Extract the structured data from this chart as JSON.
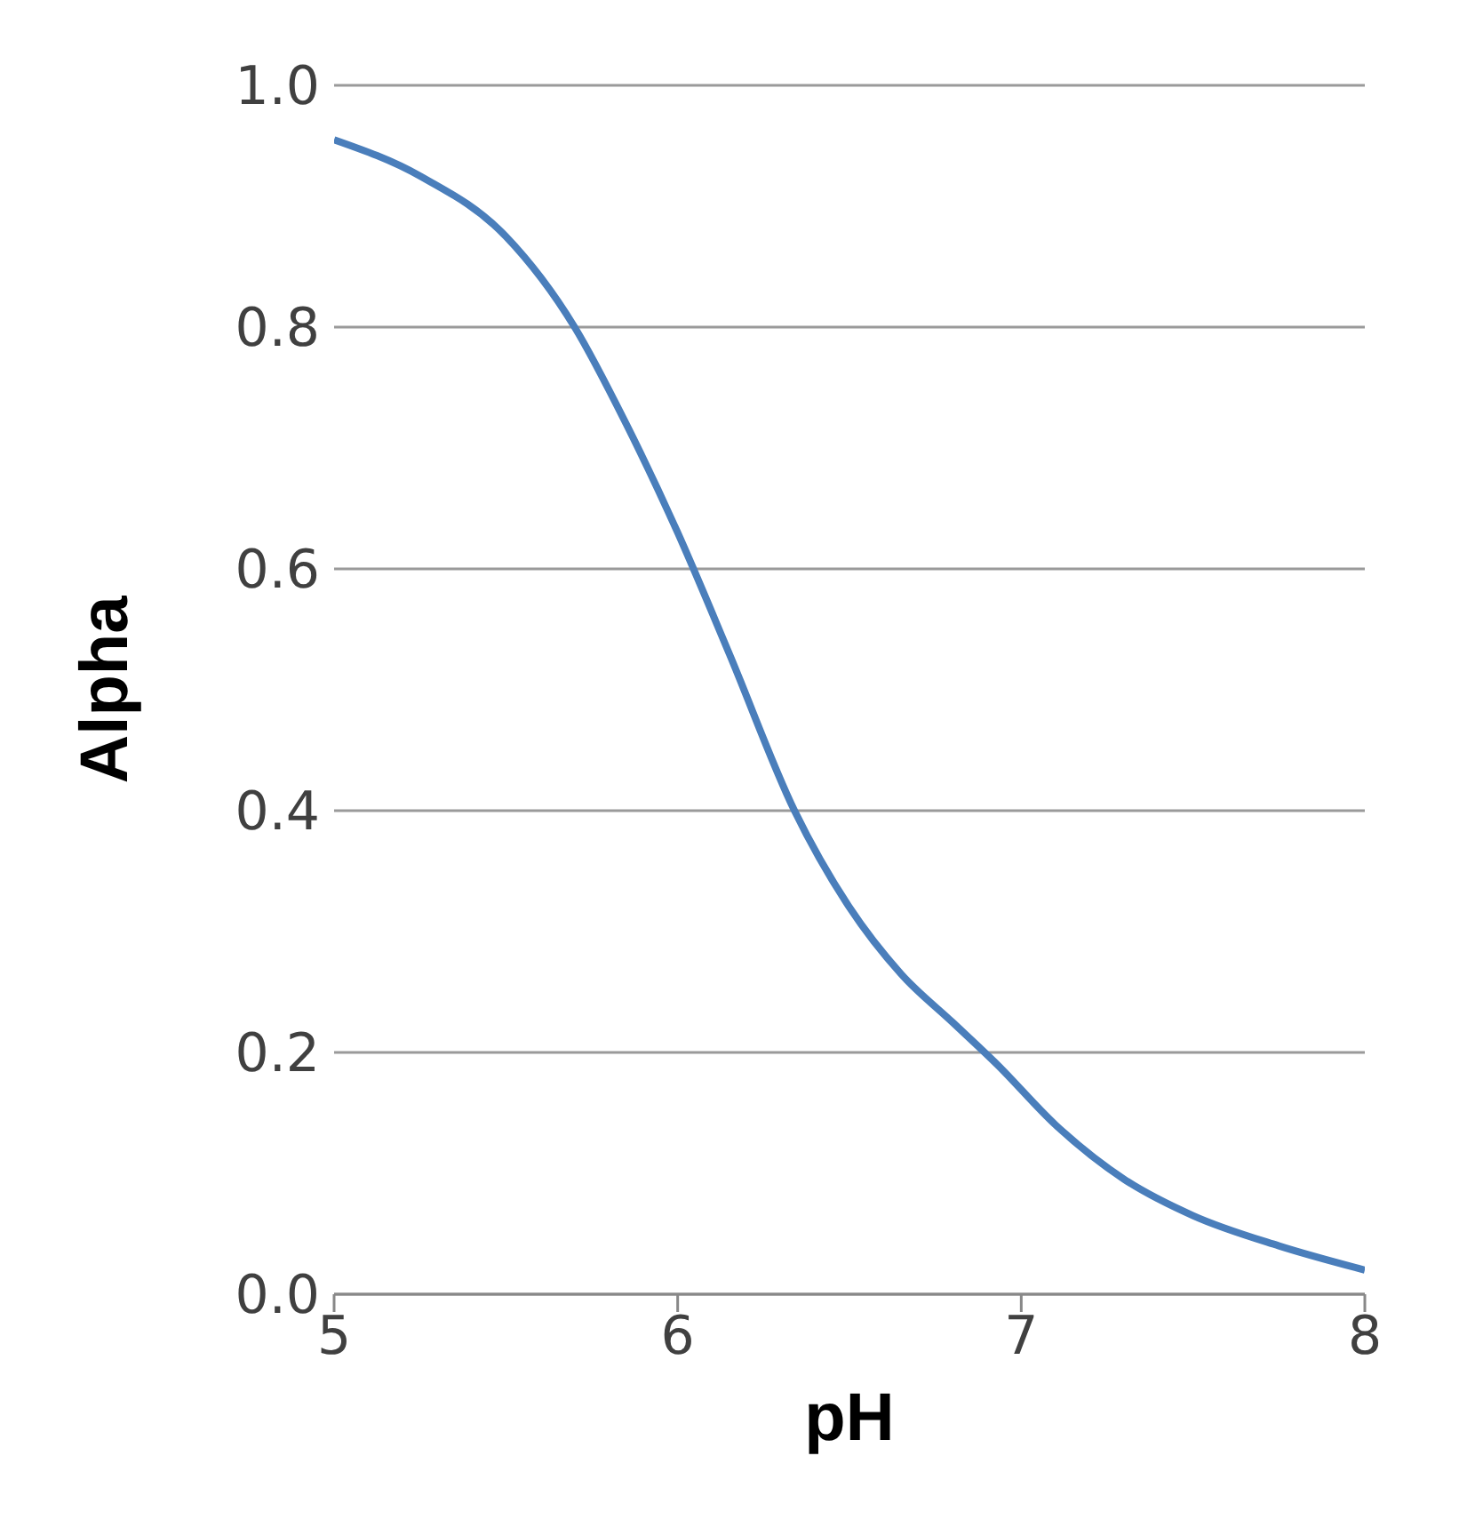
{
  "chart_data": {
    "type": "line",
    "xlabel": "pH",
    "ylabel": "Alpha",
    "x": [
      5.0,
      5.25,
      5.5,
      5.7,
      5.85,
      6.0,
      6.15,
      6.34,
      6.5,
      6.65,
      6.8,
      6.93,
      7.1,
      7.3,
      7.5,
      7.75,
      8.0
    ],
    "series": [
      {
        "color": "#4a7ebb",
        "values": [
          0.955,
          0.925,
          0.875,
          0.8,
          0.72,
          0.63,
          0.53,
          0.4,
          0.32,
          0.265,
          0.225,
          0.19,
          0.14,
          0.095,
          0.065,
          0.04,
          0.02
        ]
      }
    ],
    "xlim": [
      5,
      8
    ],
    "xticks": [
      5,
      6,
      7,
      8
    ],
    "ylim": [
      0,
      1
    ],
    "yticks": [
      {
        "value": 0,
        "label": "0.0"
      },
      {
        "value": 0.2,
        "label": "0.2"
      },
      {
        "value": 0.4,
        "label": "0.4"
      },
      {
        "value": 0.6,
        "label": "0.6"
      },
      {
        "value": 0.8,
        "label": "0.8"
      },
      {
        "value": 1,
        "label": "1.0"
      }
    ],
    "grid": "y",
    "marker": "none",
    "line_style": "solid"
  }
}
